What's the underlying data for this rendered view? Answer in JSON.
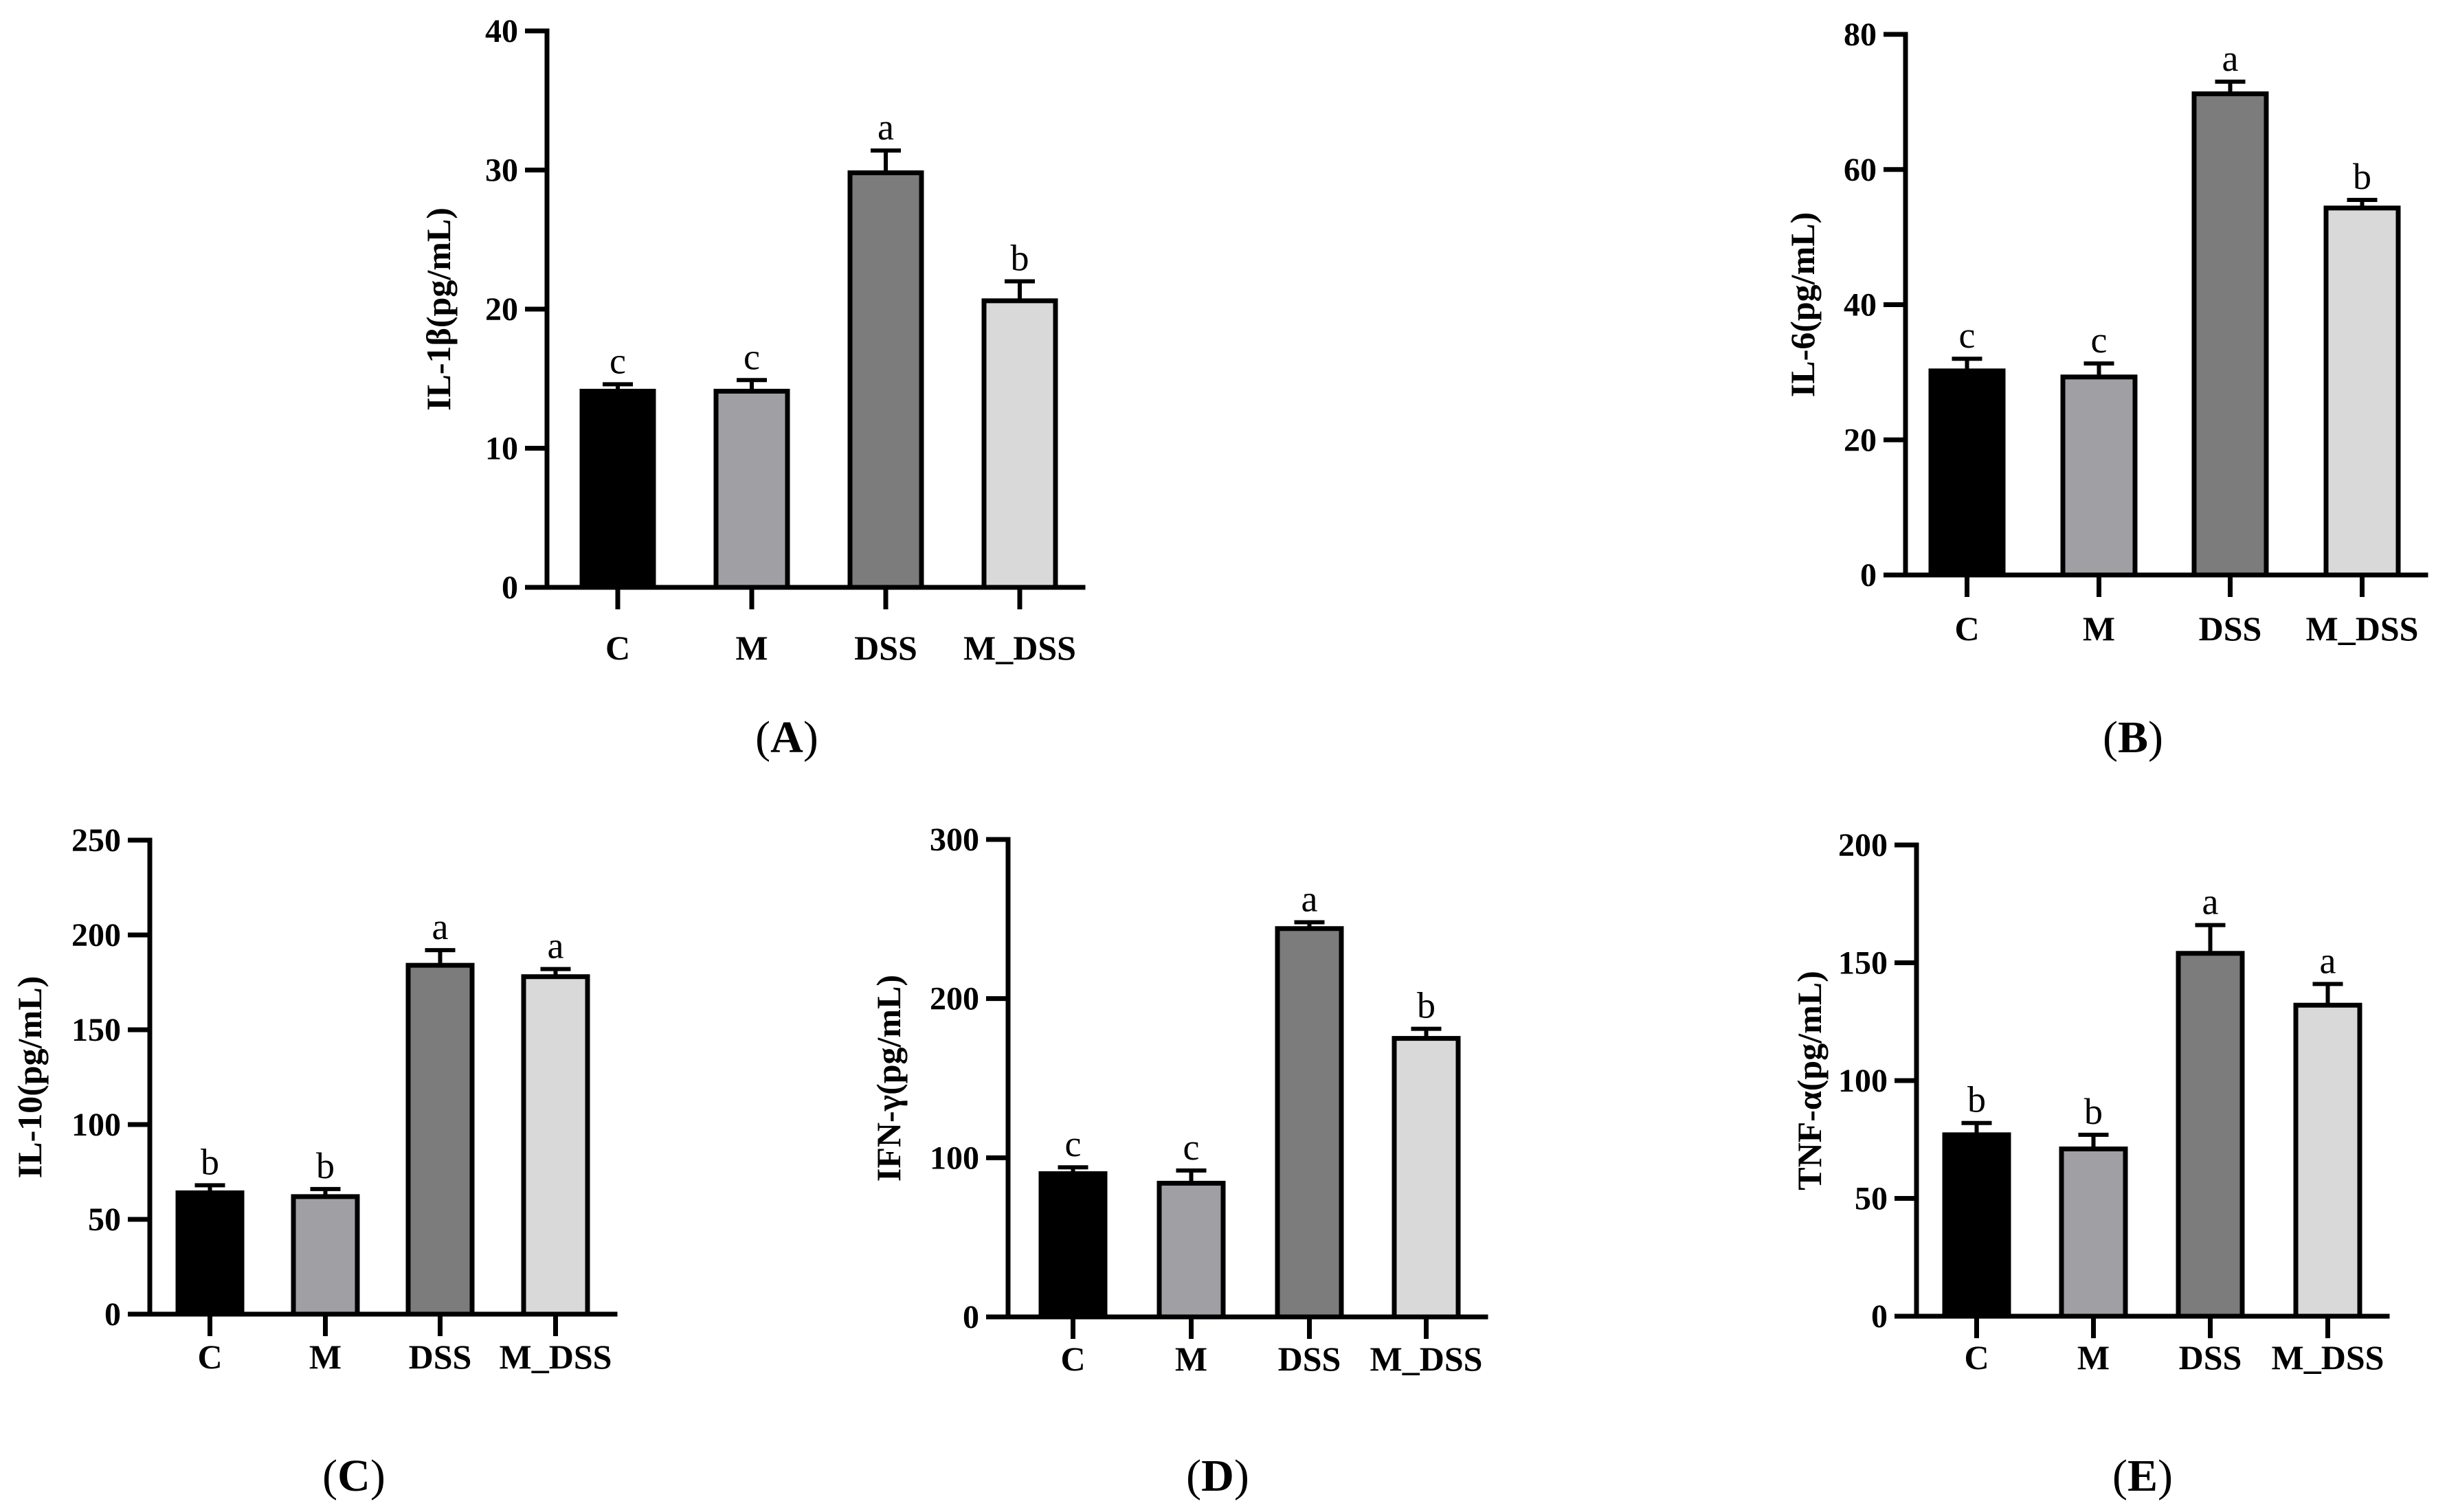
{
  "figure": {
    "colors": [
      "#000000",
      "#9f9fa4",
      "#7c7c7c",
      "#d9d9d9"
    ]
  },
  "chart_data": [
    {
      "panel": "(A)",
      "type": "bar",
      "ylabel": "IL-1β(pg/mL)",
      "categories": [
        "C",
        "M",
        "DSS",
        "M_DSS"
      ],
      "values": [
        14.1,
        14.1,
        29.8,
        20.6
      ],
      "errors": [
        0.5,
        0.8,
        1.6,
        1.4
      ],
      "significance": [
        "c",
        "c",
        "a",
        "b"
      ],
      "ylim": [
        0,
        40
      ],
      "yticks": [
        0,
        10,
        20,
        30,
        40
      ]
    },
    {
      "panel": "(B)",
      "type": "bar",
      "ylabel": "IL-6(pg/mL)",
      "categories": [
        "C",
        "M",
        "DSS",
        "M_DSS"
      ],
      "values": [
        30.2,
        29.3,
        71.2,
        54.3
      ],
      "errors": [
        1.8,
        2.0,
        1.8,
        1.2
      ],
      "significance": [
        "c",
        "c",
        "a",
        "b"
      ],
      "ylim": [
        0,
        80
      ],
      "yticks": [
        0,
        20,
        40,
        60,
        80
      ]
    },
    {
      "panel": "(C)",
      "type": "bar",
      "ylabel": "IL-10(pg/mL)",
      "categories": [
        "C",
        "M",
        "DSS",
        "M_DSS"
      ],
      "values": [
        64,
        62,
        184,
        178
      ],
      "errors": [
        4,
        4,
        8,
        4
      ],
      "significance": [
        "b",
        "b",
        "a",
        "a"
      ],
      "ylim": [
        0,
        250
      ],
      "yticks": [
        0,
        50,
        100,
        150,
        200,
        250
      ]
    },
    {
      "panel": "(D)",
      "type": "bar",
      "ylabel": "IFN-γ(pg/mL)",
      "categories": [
        "C",
        "M",
        "DSS",
        "M_DSS"
      ],
      "values": [
        90,
        84,
        244,
        175
      ],
      "errors": [
        4,
        8,
        4,
        6
      ],
      "significance": [
        "c",
        "c",
        "a",
        "b"
      ],
      "ylim": [
        0,
        300
      ],
      "yticks": [
        0,
        100,
        200,
        300
      ]
    },
    {
      "panel": "(E)",
      "type": "bar",
      "ylabel": "TNF-α(pg/mL)",
      "categories": [
        "C",
        "M",
        "DSS",
        "M_DSS"
      ],
      "values": [
        77,
        71,
        154,
        132
      ],
      "errors": [
        5,
        6,
        12,
        9
      ],
      "significance": [
        "b",
        "b",
        "a",
        "a"
      ],
      "ylim": [
        0,
        200
      ],
      "yticks": [
        0,
        50,
        100,
        150,
        200
      ]
    }
  ]
}
